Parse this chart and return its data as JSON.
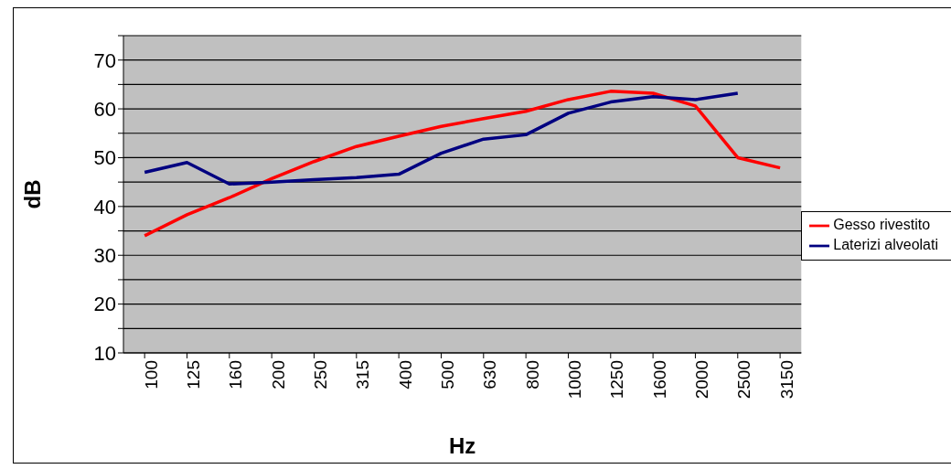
{
  "chart_data": {
    "type": "line",
    "xlabel": "Hz",
    "ylabel": "dB",
    "categories": [
      "100",
      "125",
      "160",
      "200",
      "250",
      "315",
      "400",
      "500",
      "630",
      "800",
      "1000",
      "1250",
      "1600",
      "2000",
      "2500",
      "3150"
    ],
    "series": [
      {
        "name": "Gesso rivestito",
        "color": "#ff0000",
        "values": [
          34,
          38.3,
          41.8,
          45.7,
          49.2,
          52.3,
          54.4,
          56.4,
          58,
          59.5,
          61.9,
          63.6,
          63.2,
          60.6,
          50,
          47.9
        ]
      },
      {
        "name": "Laterizi alveolati",
        "color": "#000080",
        "values": [
          47,
          49,
          44.6,
          45,
          45.5,
          45.9,
          46.6,
          50.9,
          53.8,
          54.7,
          59.1,
          61.4,
          62.5,
          61.9,
          63.2,
          null
        ]
      }
    ],
    "ylim": [
      10,
      75
    ],
    "yticks": [
      10,
      {
        "value": 15,
        "label": null
      },
      20,
      {
        "value": 25,
        "label": null
      },
      30,
      {
        "value": 35,
        "label": null
      },
      40,
      {
        "value": 45,
        "label": null
      },
      50,
      {
        "value": 55,
        "label": null
      },
      60,
      {
        "value": 65,
        "label": null
      },
      70,
      {
        "value": 75,
        "label": null
      }
    ],
    "grid": "y",
    "legend": "right"
  }
}
